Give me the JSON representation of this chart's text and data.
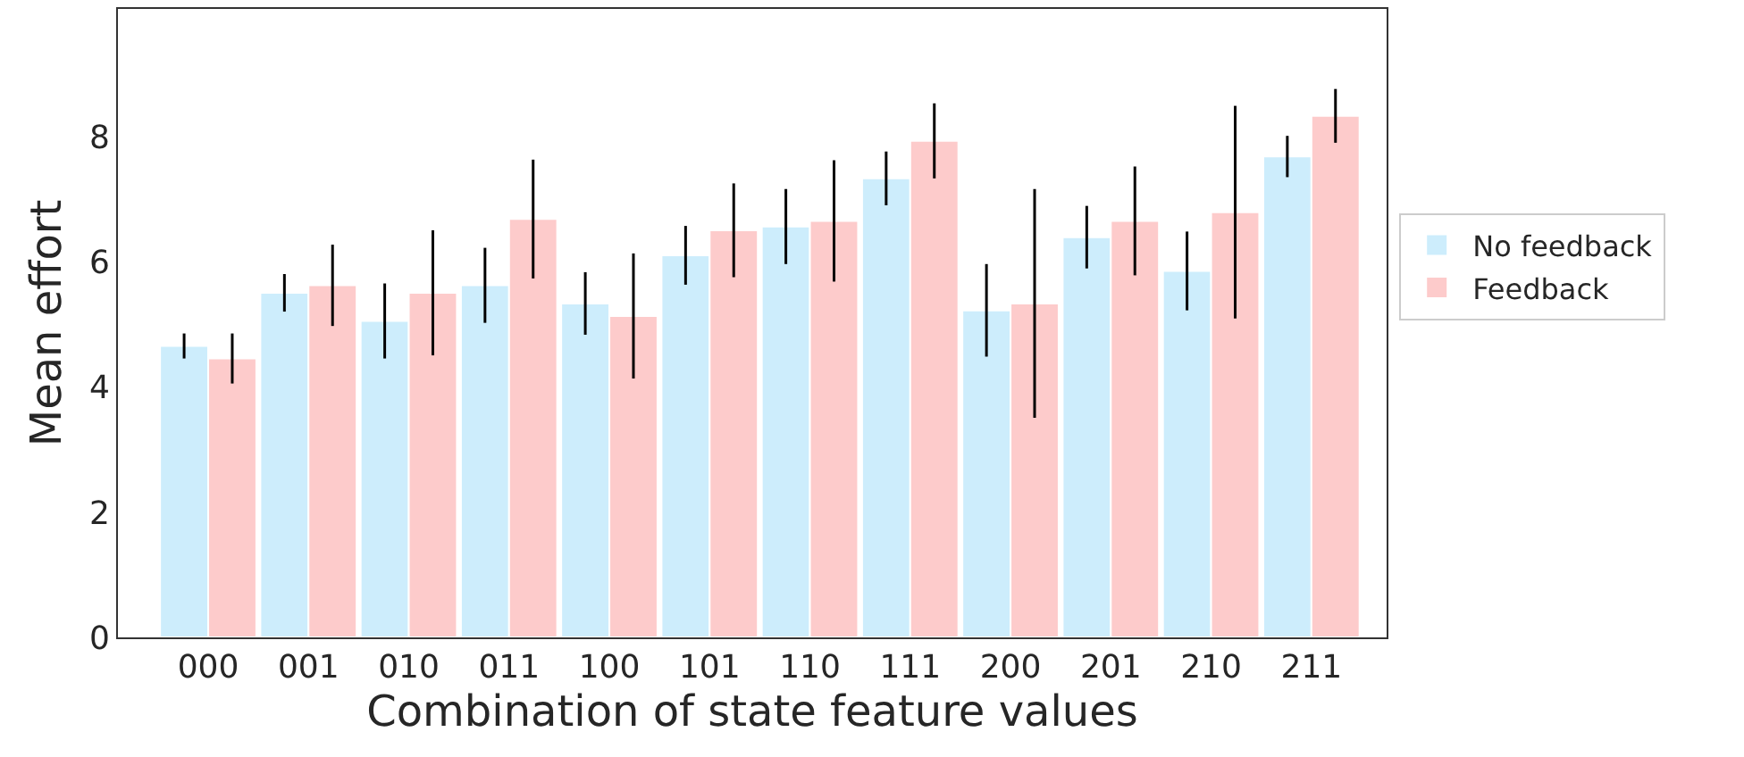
{
  "chart_data": {
    "type": "bar",
    "xlabel": "Combination of state feature values",
    "ylabel": "Mean effort",
    "categories": [
      "000",
      "001",
      "010",
      "011",
      "100",
      "101",
      "110",
      "111",
      "200",
      "201",
      "210",
      "211"
    ],
    "series": [
      {
        "name": "No feedback",
        "color": "#cdedfc",
        "values": [
          4.66,
          5.51,
          5.06,
          5.63,
          5.34,
          6.11,
          6.57,
          7.34,
          5.23,
          6.4,
          5.86,
          7.69
        ],
        "errors": [
          0.2,
          0.3,
          0.6,
          0.6,
          0.5,
          0.47,
          0.6,
          0.43,
          0.74,
          0.5,
          0.63,
          0.33
        ]
      },
      {
        "name": "Feedback",
        "color": "#fdcbcb",
        "values": [
          4.46,
          5.63,
          5.51,
          6.69,
          5.14,
          6.51,
          6.66,
          7.94,
          5.34,
          6.66,
          6.8,
          8.34
        ],
        "errors": [
          0.4,
          0.65,
          1.0,
          0.95,
          1.0,
          0.75,
          0.97,
          0.6,
          1.83,
          0.87,
          1.7,
          0.43
        ]
      }
    ],
    "ylim": [
      0,
      10.05
    ],
    "yticks": [
      0,
      2,
      4,
      6,
      8
    ],
    "legend": "right"
  }
}
